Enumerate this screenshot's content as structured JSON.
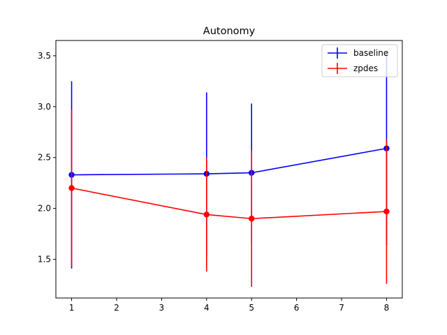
{
  "chart_data": {
    "type": "line",
    "title": "Autonomy",
    "xlabel": "",
    "ylabel": "",
    "x": [
      1,
      4,
      5,
      8
    ],
    "xlim": [
      0.65,
      8.35
    ],
    "ylim": [
      1.12,
      3.65
    ],
    "xticks": [
      1,
      2,
      3,
      4,
      5,
      6,
      7,
      8
    ],
    "yticks": [
      1.5,
      2.0,
      2.5,
      3.0,
      3.5
    ],
    "ytick_labels": [
      "1.5",
      "2.0",
      "2.5",
      "3.0",
      "3.5"
    ],
    "grid": false,
    "legend_position": "top-right",
    "series": [
      {
        "name": "baseline",
        "color": "#0000ff",
        "values": [
          2.33,
          2.34,
          2.35,
          2.59
        ],
        "errors": [
          0.92,
          0.8,
          0.68,
          0.95
        ]
      },
      {
        "name": "zpdes",
        "color": "#ff0000",
        "values": [
          2.2,
          1.94,
          1.9,
          1.97
        ],
        "errors": [
          0.77,
          0.56,
          0.67,
          0.71
        ]
      }
    ]
  }
}
